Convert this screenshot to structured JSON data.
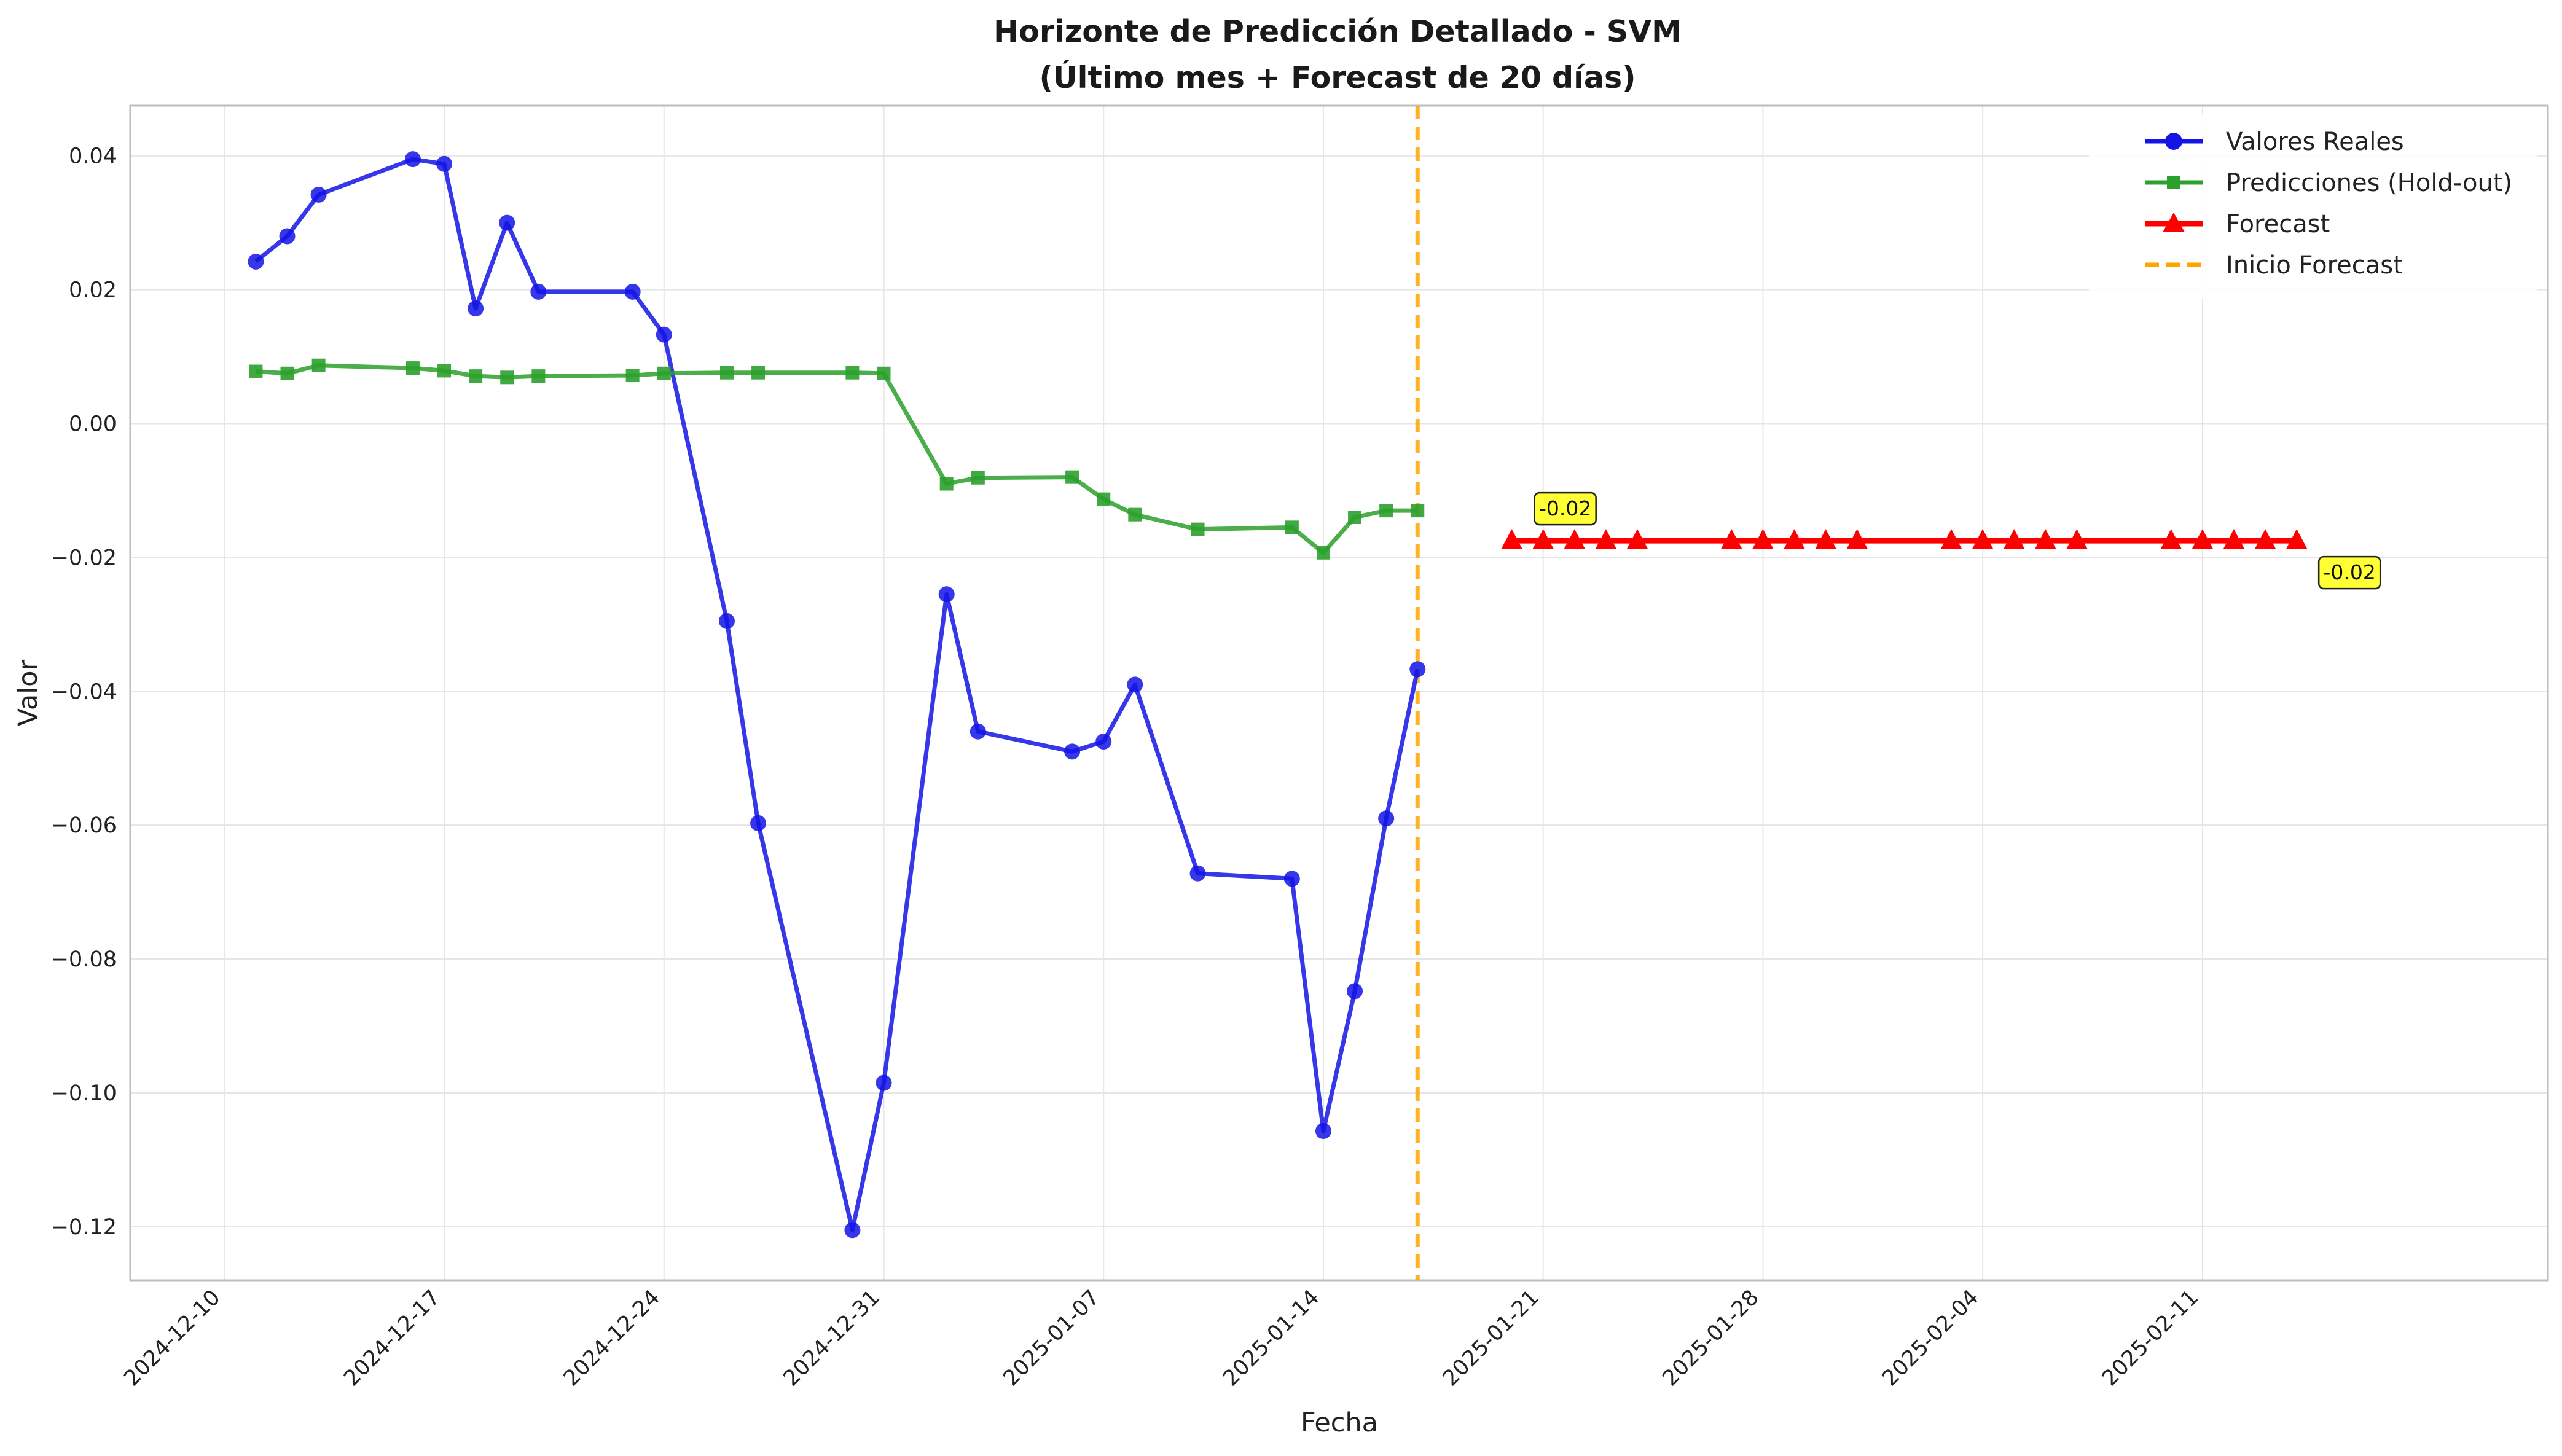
{
  "chart_data": {
    "type": "line",
    "title": "Horizonte de Predicción Detallado - SVM",
    "subtitle": "(Último mes + Forecast de 20 días)",
    "xlabel": "Fecha",
    "ylabel": "Valor",
    "x_type": "date",
    "xlim": [
      "2024-12-07",
      "2025-02-22"
    ],
    "ylim": [
      -0.128,
      0.0475
    ],
    "x_ticks": [
      "2024-12-10",
      "2024-12-17",
      "2024-12-24",
      "2024-12-31",
      "2025-01-07",
      "2025-01-14",
      "2025-01-21",
      "2025-01-28",
      "2025-02-04",
      "2025-02-11"
    ],
    "y_ticks": [
      0.04,
      0.02,
      0.0,
      -0.02,
      -0.04,
      -0.06,
      -0.08,
      -0.1,
      -0.12
    ],
    "y_tick_labels": [
      "0.04",
      "0.02",
      "0.00",
      "−0.02",
      "−0.04",
      "−0.06",
      "−0.08",
      "−0.10",
      "−0.12"
    ],
    "grid": true,
    "legend_position": "top-right",
    "series": [
      {
        "name": "Valores Reales",
        "color": "#1414e6",
        "marker": "circle",
        "x": [
          "2024-12-11",
          "2024-12-12",
          "2024-12-13",
          "2024-12-16",
          "2024-12-17",
          "2024-12-18",
          "2024-12-19",
          "2024-12-20",
          "2024-12-23",
          "2024-12-24",
          "2024-12-26",
          "2024-12-27",
          "2024-12-30",
          "2024-12-31",
          "2025-01-02",
          "2025-01-03",
          "2025-01-06",
          "2025-01-07",
          "2025-01-08",
          "2025-01-10",
          "2025-01-13",
          "2025-01-14",
          "2025-01-15",
          "2025-01-16",
          "2025-01-17"
        ],
        "y": [
          0.0242,
          0.028,
          0.0342,
          0.0395,
          0.0388,
          0.0172,
          0.03,
          0.0197,
          0.0197,
          0.0133,
          -0.0295,
          -0.0597,
          -0.1205,
          -0.0985,
          -0.0255,
          -0.046,
          -0.049,
          -0.0475,
          -0.039,
          -0.0672,
          -0.068,
          -0.1057,
          -0.0848,
          -0.059,
          -0.0367
        ]
      },
      {
        "name": "Predicciones (Hold-out)",
        "color": "#2ca02c",
        "marker": "square",
        "x": [
          "2024-12-11",
          "2024-12-12",
          "2024-12-13",
          "2024-12-16",
          "2024-12-17",
          "2024-12-18",
          "2024-12-19",
          "2024-12-20",
          "2024-12-23",
          "2024-12-24",
          "2024-12-26",
          "2024-12-27",
          "2024-12-30",
          "2024-12-31",
          "2025-01-02",
          "2025-01-03",
          "2025-01-06",
          "2025-01-07",
          "2025-01-08",
          "2025-01-10",
          "2025-01-13",
          "2025-01-14",
          "2025-01-15",
          "2025-01-16",
          "2025-01-17"
        ],
        "y": [
          0.0078,
          0.0075,
          0.0087,
          0.0083,
          0.0079,
          0.0071,
          0.0069,
          0.0071,
          0.0072,
          0.0075,
          0.0076,
          0.0076,
          0.0076,
          0.0075,
          -0.009,
          -0.0081,
          -0.008,
          -0.0113,
          -0.0136,
          -0.0158,
          -0.0155,
          -0.0193,
          -0.014,
          -0.013,
          -0.013
        ]
      },
      {
        "name": "Forecast",
        "color": "#ff0000",
        "marker": "triangle",
        "x": [
          "2025-01-20",
          "2025-01-21",
          "2025-01-22",
          "2025-01-23",
          "2025-01-24",
          "2025-01-27",
          "2025-01-28",
          "2025-01-29",
          "2025-01-30",
          "2025-01-31",
          "2025-02-03",
          "2025-02-04",
          "2025-02-05",
          "2025-02-06",
          "2025-02-07",
          "2025-02-10",
          "2025-02-11",
          "2025-02-12",
          "2025-02-13",
          "2025-02-14"
        ],
        "y": [
          -0.0175,
          -0.0175,
          -0.0175,
          -0.0175,
          -0.0175,
          -0.0175,
          -0.0175,
          -0.0175,
          -0.0175,
          -0.0175,
          -0.0175,
          -0.0175,
          -0.0175,
          -0.0175,
          -0.0175,
          -0.0175,
          -0.0175,
          -0.0175,
          -0.0175,
          -0.0175
        ]
      }
    ],
    "vline": {
      "name": "Inicio Forecast",
      "x": "2025-01-17",
      "color": "#ffa500"
    },
    "annotations": [
      {
        "text": "-0.02",
        "x": "2025-01-21",
        "y": -0.0175,
        "color": "#ffff33"
      },
      {
        "text": "-0.02",
        "x": "2025-02-14",
        "y": -0.0175,
        "color": "#ffff33"
      }
    ]
  }
}
